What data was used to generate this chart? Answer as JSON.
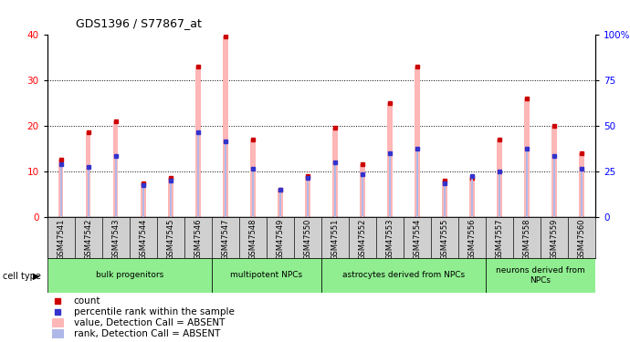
{
  "title": "GDS1396 / S77867_at",
  "samples": [
    "GSM47541",
    "GSM47542",
    "GSM47543",
    "GSM47544",
    "GSM47545",
    "GSM47546",
    "GSM47547",
    "GSM47548",
    "GSM47549",
    "GSM47550",
    "GSM47551",
    "GSM47552",
    "GSM47553",
    "GSM47554",
    "GSM47555",
    "GSM47556",
    "GSM47557",
    "GSM47558",
    "GSM47559",
    "GSM47560"
  ],
  "pink_values": [
    12.5,
    18.5,
    21.0,
    7.5,
    8.5,
    33.0,
    39.5,
    17.0,
    6.0,
    9.0,
    19.5,
    11.5,
    25.0,
    33.0,
    8.0,
    8.5,
    17.0,
    26.0,
    20.0,
    14.0
  ],
  "blue_values_pct": [
    29.0,
    27.5,
    33.5,
    17.5,
    20.0,
    46.5,
    41.5,
    26.5,
    15.0,
    21.5,
    30.0,
    23.5,
    35.0,
    37.5,
    18.5,
    22.5,
    25.0,
    37.5,
    33.5,
    26.5
  ],
  "ylim_left": [
    0,
    40
  ],
  "ylim_right": [
    0,
    100
  ],
  "left_yticks": [
    0,
    10,
    20,
    30,
    40
  ],
  "right_yticks": [
    0,
    25,
    50,
    75,
    100
  ],
  "pink_bar_color": "#FFB6B6",
  "blue_bar_color": "#B0B8E8",
  "red_mark_color": "#CC0000",
  "blue_mark_color": "#3333CC",
  "cell_type_bg_light": "#B8EEB8",
  "cell_type_bg_dark": "#66DD66",
  "xtick_bg": "#D0D0D0",
  "cell_groups": [
    {
      "label": "bulk progenitors",
      "start": 0,
      "end": 6
    },
    {
      "label": "multipotent NPCs",
      "start": 6,
      "end": 10
    },
    {
      "label": "astrocytes derived from NPCs",
      "start": 10,
      "end": 16
    },
    {
      "label": "neurons derived from\nNPCs",
      "start": 16,
      "end": 20
    }
  ],
  "legend_items": [
    {
      "color": "#CC0000",
      "type": "square",
      "label": "count"
    },
    {
      "color": "#3333CC",
      "type": "square",
      "label": "percentile rank within the sample"
    },
    {
      "color": "#FFB6B6",
      "type": "rect",
      "label": "value, Detection Call = ABSENT"
    },
    {
      "color": "#B0B8E8",
      "type": "rect",
      "label": "rank, Detection Call = ABSENT"
    }
  ]
}
